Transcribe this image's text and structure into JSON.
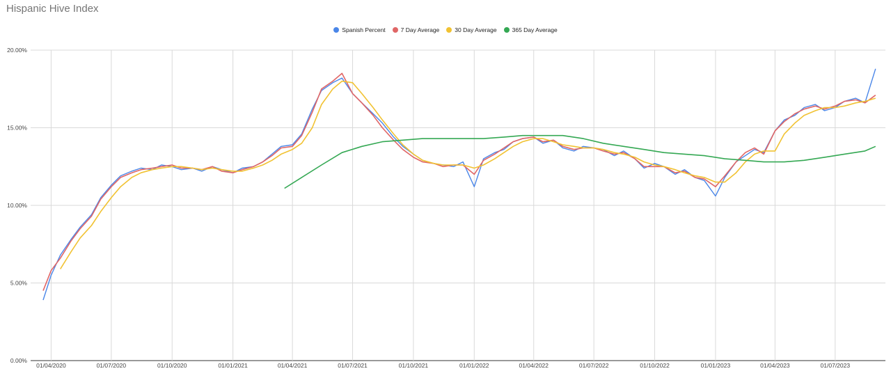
{
  "chart_data": {
    "type": "line",
    "title": "Hispanic Hive Index",
    "xlabel": "",
    "ylabel": "",
    "ylim": [
      0,
      20
    ],
    "y_ticks": [
      "0.00%",
      "5.00%",
      "10.00%",
      "15.00%",
      "20.00%"
    ],
    "y_tick_values": [
      0,
      5,
      10,
      15,
      20
    ],
    "x_range": [
      "2020-03-01",
      "2023-09-15"
    ],
    "x_ticks": [
      "01/04/2020",
      "01/07/2020",
      "01/10/2020",
      "01/01/2021",
      "01/04/2021",
      "01/07/2021",
      "01/10/2021",
      "01/01/2022",
      "01/04/2022",
      "01/07/2022",
      "01/10/2022",
      "01/01/2023",
      "01/04/2023",
      "01/07/2023"
    ],
    "x_tick_dates": [
      "2020-04-01",
      "2020-07-01",
      "2020-10-01",
      "2021-01-01",
      "2021-04-01",
      "2021-07-01",
      "2021-10-01",
      "2022-01-01",
      "2022-04-01",
      "2022-07-01",
      "2022-10-01",
      "2023-01-01",
      "2023-04-01",
      "2023-07-01"
    ],
    "grid": true,
    "legend_position": "top",
    "series": [
      {
        "name": "Spanish Percent",
        "color": "#4a86e8",
        "x": [
          "2020-03-20",
          "2020-04-01",
          "2020-04-15",
          "2020-05-01",
          "2020-05-15",
          "2020-06-01",
          "2020-06-15",
          "2020-07-01",
          "2020-07-15",
          "2020-08-01",
          "2020-08-15",
          "2020-09-01",
          "2020-09-15",
          "2020-10-01",
          "2020-10-15",
          "2020-11-01",
          "2020-11-15",
          "2020-12-01",
          "2020-12-15",
          "2021-01-01",
          "2021-01-15",
          "2021-02-01",
          "2021-02-15",
          "2021-03-01",
          "2021-03-15",
          "2021-04-01",
          "2021-04-15",
          "2021-05-01",
          "2021-05-15",
          "2021-06-01",
          "2021-06-15",
          "2021-07-01",
          "2021-07-15",
          "2021-08-01",
          "2021-08-15",
          "2021-09-01",
          "2021-09-15",
          "2021-10-01",
          "2021-10-15",
          "2021-11-01",
          "2021-11-15",
          "2021-12-01",
          "2021-12-15",
          "2022-01-01",
          "2022-01-15",
          "2022-02-01",
          "2022-02-15",
          "2022-03-01",
          "2022-03-15",
          "2022-04-01",
          "2022-04-15",
          "2022-05-01",
          "2022-05-15",
          "2022-06-01",
          "2022-06-15",
          "2022-07-01",
          "2022-07-15",
          "2022-08-01",
          "2022-08-15",
          "2022-09-01",
          "2022-09-15",
          "2022-10-01",
          "2022-10-15",
          "2022-11-01",
          "2022-11-15",
          "2022-12-01",
          "2022-12-15",
          "2023-01-01",
          "2023-01-15",
          "2023-02-01",
          "2023-02-15",
          "2023-03-01",
          "2023-03-15",
          "2023-04-01",
          "2023-04-15",
          "2023-05-01",
          "2023-05-15",
          "2023-06-01",
          "2023-06-15",
          "2023-07-01",
          "2023-07-15",
          "2023-08-01",
          "2023-08-15",
          "2023-08-31"
        ],
        "values": [
          3.9,
          5.5,
          6.8,
          7.8,
          8.6,
          9.4,
          10.5,
          11.3,
          11.9,
          12.2,
          12.4,
          12.3,
          12.6,
          12.5,
          12.3,
          12.4,
          12.2,
          12.5,
          12.3,
          12.1,
          12.4,
          12.5,
          12.8,
          13.3,
          13.8,
          13.9,
          14.6,
          16.2,
          17.4,
          17.9,
          18.2,
          17.2,
          16.6,
          15.9,
          15.3,
          14.4,
          13.8,
          13.3,
          12.9,
          12.7,
          12.6,
          12.5,
          12.8,
          11.2,
          13.0,
          13.4,
          13.6,
          14.1,
          14.3,
          14.4,
          14.0,
          14.2,
          13.7,
          13.5,
          13.8,
          13.7,
          13.6,
          13.2,
          13.5,
          13.0,
          12.4,
          12.7,
          12.5,
          12.0,
          12.3,
          11.8,
          11.6,
          10.6,
          11.8,
          12.8,
          13.2,
          13.6,
          13.4,
          14.8,
          15.5,
          15.8,
          16.3,
          16.5,
          16.1,
          16.3,
          16.7,
          16.9,
          16.6,
          18.8
        ]
      },
      {
        "name": "7 Day Average",
        "color": "#e06666",
        "x": [
          "2020-03-20",
          "2020-04-01",
          "2020-04-15",
          "2020-05-01",
          "2020-05-15",
          "2020-06-01",
          "2020-06-15",
          "2020-07-01",
          "2020-07-15",
          "2020-08-01",
          "2020-08-15",
          "2020-09-01",
          "2020-09-15",
          "2020-10-01",
          "2020-10-15",
          "2020-11-01",
          "2020-11-15",
          "2020-12-01",
          "2020-12-15",
          "2021-01-01",
          "2021-01-15",
          "2021-02-01",
          "2021-02-15",
          "2021-03-01",
          "2021-03-15",
          "2021-04-01",
          "2021-04-15",
          "2021-05-01",
          "2021-05-15",
          "2021-06-01",
          "2021-06-15",
          "2021-07-01",
          "2021-07-15",
          "2021-08-01",
          "2021-08-15",
          "2021-09-01",
          "2021-09-15",
          "2021-10-01",
          "2021-10-15",
          "2021-11-01",
          "2021-11-15",
          "2021-12-01",
          "2021-12-15",
          "2022-01-01",
          "2022-01-15",
          "2022-02-01",
          "2022-02-15",
          "2022-03-01",
          "2022-03-15",
          "2022-04-01",
          "2022-04-15",
          "2022-05-01",
          "2022-05-15",
          "2022-06-01",
          "2022-06-15",
          "2022-07-01",
          "2022-07-15",
          "2022-08-01",
          "2022-08-15",
          "2022-09-01",
          "2022-09-15",
          "2022-10-01",
          "2022-10-15",
          "2022-11-01",
          "2022-11-15",
          "2022-12-01",
          "2022-12-15",
          "2023-01-01",
          "2023-01-15",
          "2023-02-01",
          "2023-02-15",
          "2023-03-01",
          "2023-03-15",
          "2023-04-01",
          "2023-04-15",
          "2023-05-01",
          "2023-05-15",
          "2023-06-01",
          "2023-06-15",
          "2023-07-01",
          "2023-07-15",
          "2023-08-01",
          "2023-08-15",
          "2023-08-31"
        ],
        "values": [
          4.5,
          5.8,
          6.6,
          7.7,
          8.5,
          9.3,
          10.4,
          11.2,
          11.8,
          12.1,
          12.3,
          12.4,
          12.5,
          12.6,
          12.4,
          12.4,
          12.3,
          12.5,
          12.2,
          12.1,
          12.3,
          12.5,
          12.8,
          13.2,
          13.7,
          13.8,
          14.5,
          16.0,
          17.5,
          18.0,
          18.5,
          17.2,
          16.6,
          15.8,
          15.0,
          14.2,
          13.6,
          13.1,
          12.8,
          12.7,
          12.5,
          12.6,
          12.6,
          12.0,
          12.9,
          13.3,
          13.7,
          14.1,
          14.3,
          14.4,
          14.1,
          14.2,
          13.8,
          13.6,
          13.7,
          13.7,
          13.5,
          13.3,
          13.4,
          13.0,
          12.5,
          12.5,
          12.5,
          12.1,
          12.2,
          11.8,
          11.7,
          11.2,
          11.9,
          12.8,
          13.4,
          13.7,
          13.3,
          14.8,
          15.4,
          15.9,
          16.2,
          16.4,
          16.2,
          16.4,
          16.7,
          16.8,
          16.6,
          17.1
        ]
      },
      {
        "name": "30 Day Average",
        "color": "#f1c232",
        "x": [
          "2020-04-15",
          "2020-05-01",
          "2020-05-15",
          "2020-06-01",
          "2020-06-15",
          "2020-07-01",
          "2020-07-15",
          "2020-08-01",
          "2020-08-15",
          "2020-09-01",
          "2020-09-15",
          "2020-10-01",
          "2020-10-15",
          "2020-11-01",
          "2020-11-15",
          "2020-12-01",
          "2020-12-15",
          "2021-01-01",
          "2021-01-15",
          "2021-02-01",
          "2021-02-15",
          "2021-03-01",
          "2021-03-15",
          "2021-04-01",
          "2021-04-15",
          "2021-05-01",
          "2021-05-15",
          "2021-06-01",
          "2021-06-15",
          "2021-07-01",
          "2021-07-15",
          "2021-08-01",
          "2021-08-15",
          "2021-09-01",
          "2021-09-15",
          "2021-10-01",
          "2021-10-15",
          "2021-11-01",
          "2021-11-15",
          "2021-12-01",
          "2021-12-15",
          "2022-01-01",
          "2022-01-15",
          "2022-02-01",
          "2022-02-15",
          "2022-03-01",
          "2022-03-15",
          "2022-04-01",
          "2022-04-15",
          "2022-05-01",
          "2022-05-15",
          "2022-06-01",
          "2022-06-15",
          "2022-07-01",
          "2022-07-15",
          "2022-08-01",
          "2022-08-15",
          "2022-09-01",
          "2022-09-15",
          "2022-10-01",
          "2022-10-15",
          "2022-11-01",
          "2022-11-15",
          "2022-12-01",
          "2022-12-15",
          "2023-01-01",
          "2023-01-15",
          "2023-02-01",
          "2023-02-15",
          "2023-03-01",
          "2023-03-15",
          "2023-04-01",
          "2023-04-15",
          "2023-05-01",
          "2023-05-15",
          "2023-06-01",
          "2023-06-15",
          "2023-07-01",
          "2023-07-15",
          "2023-08-01",
          "2023-08-15",
          "2023-08-31"
        ],
        "values": [
          5.9,
          7.0,
          7.9,
          8.7,
          9.6,
          10.5,
          11.2,
          11.8,
          12.1,
          12.3,
          12.4,
          12.5,
          12.5,
          12.4,
          12.3,
          12.4,
          12.3,
          12.2,
          12.2,
          12.4,
          12.6,
          12.9,
          13.3,
          13.6,
          14.0,
          15.0,
          16.5,
          17.5,
          18.0,
          17.9,
          17.2,
          16.3,
          15.5,
          14.6,
          13.9,
          13.3,
          12.9,
          12.7,
          12.6,
          12.6,
          12.6,
          12.4,
          12.6,
          13.0,
          13.4,
          13.8,
          14.1,
          14.3,
          14.3,
          14.1,
          13.9,
          13.8,
          13.7,
          13.7,
          13.6,
          13.4,
          13.3,
          13.1,
          12.8,
          12.6,
          12.5,
          12.3,
          12.1,
          11.9,
          11.8,
          11.5,
          11.5,
          12.1,
          12.8,
          13.3,
          13.5,
          13.5,
          14.6,
          15.3,
          15.8,
          16.1,
          16.3,
          16.3,
          16.4,
          16.6,
          16.7,
          16.9
        ]
      },
      {
        "name": "365 Day Average",
        "color": "#34a853",
        "x": [
          "2021-03-20",
          "2021-04-15",
          "2021-05-15",
          "2021-06-15",
          "2021-07-15",
          "2021-08-15",
          "2021-09-15",
          "2021-10-15",
          "2021-11-15",
          "2021-12-15",
          "2022-01-15",
          "2022-02-15",
          "2022-03-15",
          "2022-04-15",
          "2022-05-15",
          "2022-06-15",
          "2022-07-15",
          "2022-08-15",
          "2022-09-15",
          "2022-10-15",
          "2022-11-15",
          "2022-12-15",
          "2023-01-15",
          "2023-02-15",
          "2023-03-15",
          "2023-04-15",
          "2023-05-15",
          "2023-06-15",
          "2023-07-15",
          "2023-08-15",
          "2023-08-31"
        ],
        "values": [
          11.1,
          11.8,
          12.6,
          13.4,
          13.8,
          14.1,
          14.2,
          14.3,
          14.3,
          14.3,
          14.3,
          14.4,
          14.5,
          14.5,
          14.5,
          14.3,
          14.0,
          13.8,
          13.6,
          13.4,
          13.3,
          13.2,
          13.0,
          12.9,
          12.8,
          12.8,
          12.9,
          13.1,
          13.3,
          13.5,
          13.8
        ]
      }
    ]
  }
}
